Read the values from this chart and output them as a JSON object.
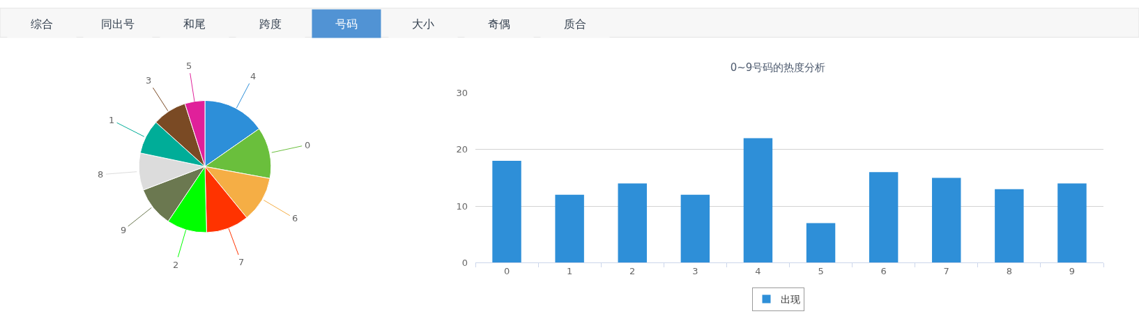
{
  "chart_data": [
    {
      "type": "other",
      "categories": [
        "综合",
        "同出号",
        "和尾",
        "跨度",
        "号码",
        "大小",
        "奇偶",
        "质合"
      ],
      "colors": [
        "#f7f7f7",
        "#f7f7f7",
        "#f7f7f7",
        "#f7f7f7",
        "#5193d4",
        "#f7f7f7",
        "#f7f7f7",
        "#f7f7f7"
      ]
    },
    {
      "type": "pie",
      "categories": [
        "4",
        "0",
        "6",
        "7",
        "2",
        "9",
        "8",
        "1",
        "3",
        "5"
      ],
      "values": [
        15.3,
        12.6,
        11.2,
        10.5,
        9.8,
        9.8,
        9.1,
        8.4,
        8.4,
        4.9
      ],
      "colors": [
        "#2d8fd9",
        "#6abf3c",
        "#f5ae45",
        "#ff3300",
        "#00ff00",
        "#6b7850",
        "#dcdcdc",
        "#00ad98",
        "#7a4a24",
        "#e0209a"
      ]
    },
    {
      "type": "bar",
      "title": "0~9号码的热度分析",
      "categories": [
        "0",
        "1",
        "2",
        "3",
        "4",
        "5",
        "6",
        "7",
        "8",
        "9"
      ],
      "series": [
        {
          "name": "出现",
          "color": "#2e8fd8",
          "values": [
            18,
            12,
            14,
            12,
            22,
            7,
            16,
            15,
            13,
            14
          ]
        }
      ],
      "ylim": [
        0,
        30
      ],
      "yticks": [
        0,
        10,
        20,
        30
      ],
      "grid": "y",
      "legend": "bottom"
    }
  ]
}
